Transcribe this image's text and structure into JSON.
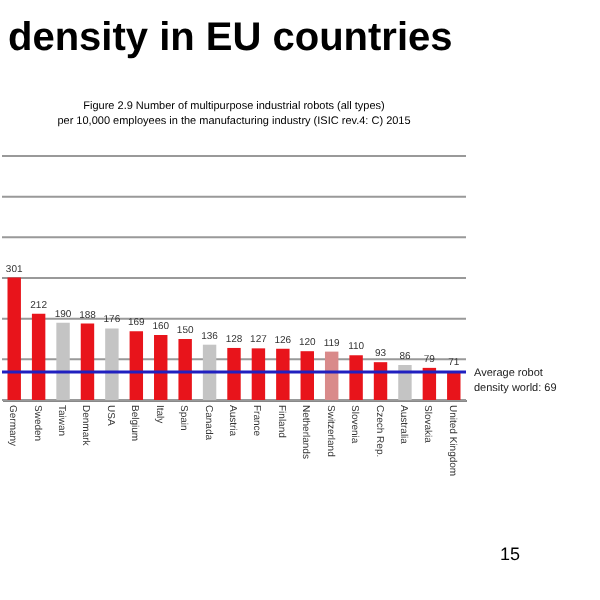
{
  "chart_data": {
    "type": "bar",
    "title": "density in EU countries",
    "subtitle": "Figure 2.9 Number of multipurpose industrial robots (all types)\nper 10,000 employees in the manufacturing industry (ISIC rev.4: C) 2015",
    "categories": [
      "Germany",
      "Sweden",
      "Taiwan",
      "Denmark",
      "USA",
      "Belgium",
      "Italy",
      "Spain",
      "Canada",
      "Austria",
      "France",
      "Finland",
      "Netherlands",
      "Switzerland",
      "Slovenia",
      "Czech Rep.",
      "Australia",
      "Slovakia",
      "United Kingdom"
    ],
    "values": [
      301,
      212,
      190,
      188,
      176,
      169,
      160,
      150,
      136,
      128,
      127,
      126,
      120,
      119,
      110,
      93,
      86,
      79,
      71
    ],
    "colors": [
      "#e8141b",
      "#e8141b",
      "#c4c4c4",
      "#e8141b",
      "#c4c4c4",
      "#e8141b",
      "#e8141b",
      "#e8141b",
      "#c4c4c4",
      "#e8141b",
      "#e8141b",
      "#e8141b",
      "#e8141b",
      "#d98a8a",
      "#e8141b",
      "#e8141b",
      "#c4c4c4",
      "#e8141b",
      "#e8141b"
    ],
    "data_labels": true,
    "ylim": [
      0,
      600
    ],
    "yticks": [
      {
        "value": 0,
        "label": null
      },
      {
        "value": 100,
        "label": null
      },
      {
        "value": 200,
        "label": null
      },
      {
        "value": 300,
        "label": null
      },
      {
        "value": 400,
        "label": null
      },
      {
        "value": 500,
        "label": null
      },
      {
        "value": 600,
        "label": null
      }
    ],
    "tick_labels": "x",
    "grid": "y",
    "ref_lines": [
      {
        "axis": "y",
        "value": 69,
        "label": "Average robot density world: 69",
        "color": "#2020c0"
      }
    ],
    "annotations": [
      "15"
    ]
  }
}
